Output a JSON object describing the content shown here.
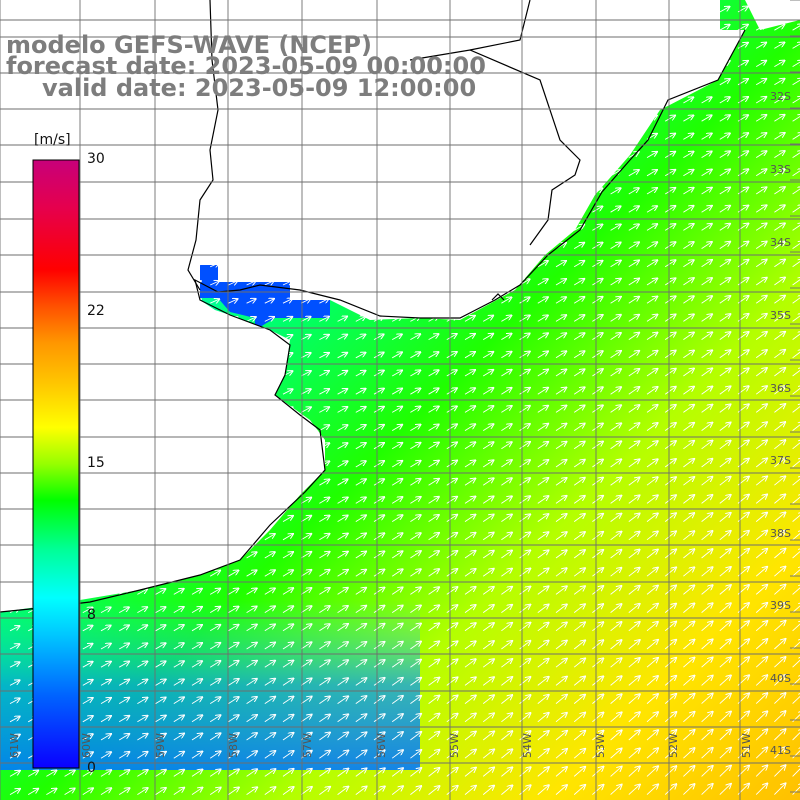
{
  "title": {
    "model": "modelo GEFS-WAVE (NCEP)",
    "forecast": "forecast date: 2023-05-09 00:00:00",
    "valid": "valid date: 2023-05-09 12:00:00"
  },
  "colorbar": {
    "unit": "[m/s]",
    "ticks": [
      "30",
      "22",
      "15",
      "8",
      "0"
    ],
    "colors": [
      "#0a00ff",
      "#0064ff",
      "#00c8ff",
      "#00ffff",
      "#00ff96",
      "#00ff00",
      "#96ff00",
      "#ffff00",
      "#ffc800",
      "#ff9600",
      "#ff5000",
      "#ff0000",
      "#e6004c",
      "#c8007a"
    ]
  },
  "axes": {
    "lat_labels": [
      "32S",
      "33S",
      "34S",
      "35S",
      "36S",
      "37S",
      "38S",
      "39S",
      "40S",
      "41S"
    ],
    "lon_labels": [
      "61W",
      "60W",
      "59W",
      "58W",
      "57W",
      "56W",
      "55W",
      "54W",
      "53W",
      "52W",
      "51W"
    ]
  },
  "colors": {
    "land": "#ffffff",
    "grid": "#6e6e6e",
    "coast": "#000000",
    "arrows": "#ffffff",
    "title": "#7d7d7d"
  }
}
